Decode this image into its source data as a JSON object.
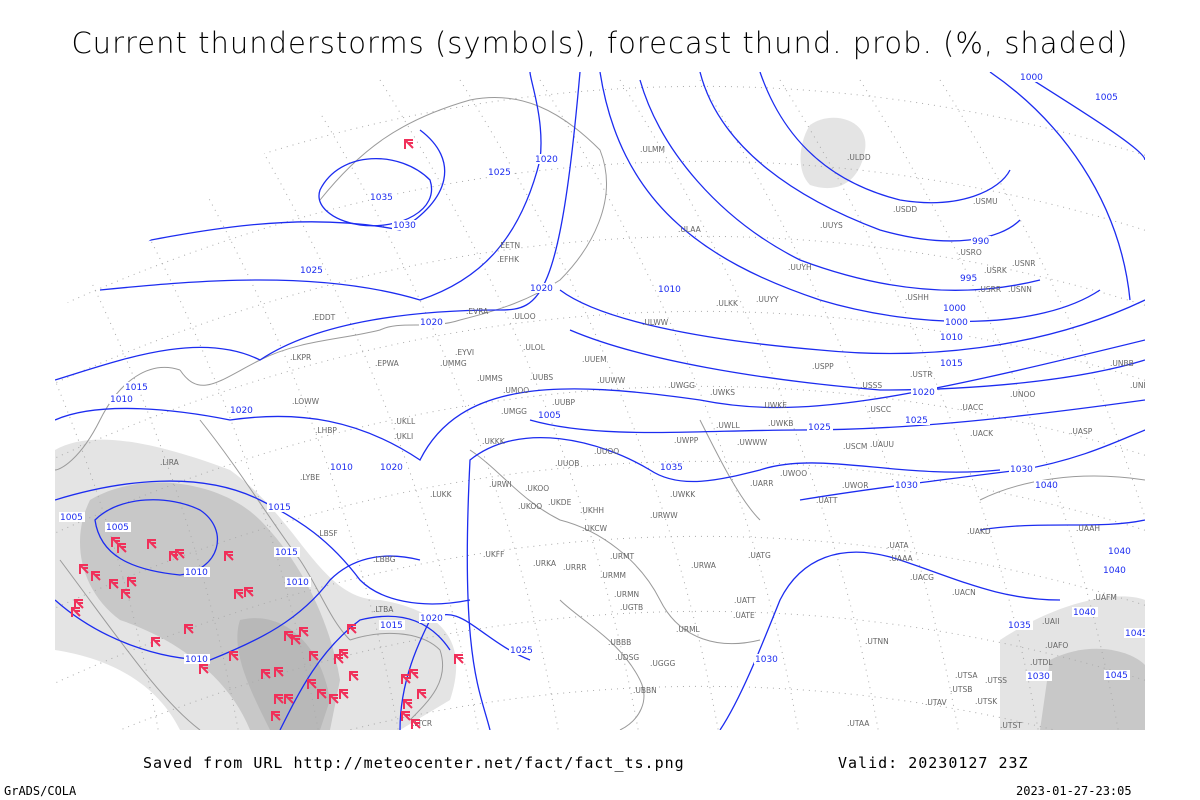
{
  "title": "Current thunderstorms (symbols), forecast thund. prob. (%, shaded)",
  "footer": {
    "source": "Saved from URL http://meteocenter.net/fact/fact_ts.png",
    "valid": "Valid: 20230127 23Z",
    "software": "GrADS/COLA",
    "generated": "2023-01-27-23:05"
  },
  "colors": {
    "isobar": "#1c2cf0",
    "storm_symbol": "#f0305a",
    "coast": "#9a9a9a",
    "shade_light": "#e4e4e4",
    "shade_dark": "#c8c8c8"
  },
  "legend_symbol": "thunderstorm-symbol",
  "isobar_labels": [
    "1035",
    "1030",
    "1025",
    "1025",
    "1020",
    "1020",
    "1020",
    "1020",
    "1015",
    "1015",
    "1015",
    "1010",
    "1010",
    "1010",
    "1005",
    "1005",
    "1025",
    "1020",
    "1025",
    "1020",
    "1010",
    "1000",
    "995",
    "990",
    "1000",
    "1005",
    "1010",
    "1015",
    "1020",
    "1025",
    "1030",
    "1030",
    "1035",
    "1040",
    "1040",
    "1040",
    "1040",
    "1045",
    "1035",
    "1045",
    "1030",
    "1030",
    "1015",
    "1010",
    "1010",
    "1005",
    "1000"
  ],
  "stations": [
    "ULMM",
    "ULDD",
    "USDD",
    "USMU",
    "UUYS",
    "ULAA",
    "USRO",
    "USRK",
    "USNR",
    "UUYH",
    "USRR",
    "USNN",
    "USHH",
    "ULKK",
    "UUYY",
    "ULWW",
    "EFHK",
    "EETN",
    "EVRA",
    "ULOO",
    "ULOL",
    "UUEM",
    "EYVI",
    "EPWA",
    "UMMG",
    "UMMS",
    "UMOO",
    "UUBS",
    "UUWW",
    "UWGG",
    "UWKS",
    "USPP",
    "USSS",
    "USTR",
    "UWKE",
    "UNOO",
    "UMGG",
    "UUBP",
    "UKLL",
    "UKLI",
    "UKKK",
    "UUOB",
    "UUOO",
    "UWPP",
    "UWWW",
    "UWLL",
    "UWKB",
    "USCM",
    "UAUU",
    "UACK",
    "UASP",
    "USCC",
    "UACC",
    "LKPR",
    "EDDT",
    "LOWW",
    "LHBP",
    "LIRA",
    "LYBE",
    "LUKK",
    "LBSF",
    "LBBG",
    "LTBA",
    "UKOO",
    "UKFF",
    "URKA",
    "URRR",
    "UKCW",
    "UKHH",
    "UKDE",
    "UKOO",
    "URWI",
    "URMT",
    "URMM",
    "URMN",
    "UGTB",
    "UBBB",
    "UGGG",
    "UDSG",
    "URML",
    "UBBN",
    "URWA",
    "UATG",
    "UATE",
    "UATT",
    "UAAA",
    "UAKD",
    "UAAH",
    "UAFM",
    "UATA",
    "UACG",
    "UACN",
    "UTNN",
    "UTSA",
    "UTSB",
    "UTSS",
    "UTSK",
    "UTAV",
    "UTST",
    "UTDL",
    "UTAA",
    "UAII",
    "UAFO",
    "UNBB",
    "UNBG",
    "UATT",
    "UWOO",
    "UWOR",
    "UARR",
    "UWKK",
    "URWW",
    "LTCR"
  ]
}
